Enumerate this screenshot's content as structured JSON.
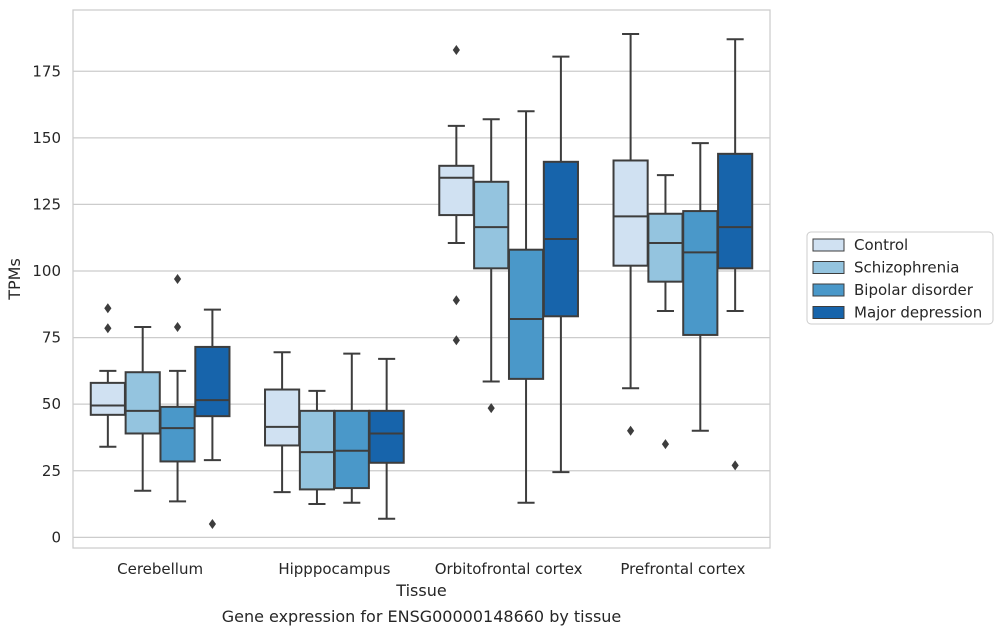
{
  "chart_data": {
    "type": "box",
    "xlabel": "Tissue",
    "ylabel": "TPMs",
    "caption": "Gene expression for ENSG00000148660 by tissue",
    "ylim": [
      -4,
      198
    ],
    "yticks": [
      0,
      25,
      50,
      75,
      100,
      125,
      150,
      175
    ],
    "grid": "horizontal",
    "legend_position": "right",
    "categories": [
      "Cerebellum",
      "Hipppocampus",
      "Orbitofrontal cortex",
      "Prefrontal cortex"
    ],
    "series": [
      {
        "name": "Control",
        "color": "#d0e1f2",
        "boxes": [
          {
            "whislo": 34,
            "q1": 46,
            "med": 49.5,
            "q3": 58,
            "whishi": 62.5,
            "fliers": [
              86,
              78.5
            ]
          },
          {
            "whislo": 17,
            "q1": 34.5,
            "med": 41.5,
            "q3": 55.5,
            "whishi": 69.5,
            "fliers": []
          },
          {
            "whislo": 110.5,
            "q1": 121,
            "med": 135,
            "q3": 139.5,
            "whishi": 154.5,
            "fliers": [
              183,
              89,
              74
            ]
          },
          {
            "whislo": 56,
            "q1": 102,
            "med": 120.5,
            "q3": 141.5,
            "whishi": 189,
            "fliers": [
              40
            ]
          }
        ]
      },
      {
        "name": "Schizophrenia",
        "color": "#94c4df",
        "boxes": [
          {
            "whislo": 17.5,
            "q1": 39,
            "med": 47.5,
            "q3": 62,
            "whishi": 79,
            "fliers": []
          },
          {
            "whislo": 12.5,
            "q1": 18,
            "med": 32,
            "q3": 47.5,
            "whishi": 55,
            "fliers": []
          },
          {
            "whislo": 58.5,
            "q1": 101,
            "med": 116.5,
            "q3": 133.5,
            "whishi": 157,
            "fliers": [
              48.5
            ]
          },
          {
            "whislo": 85,
            "q1": 96,
            "med": 110.5,
            "q3": 121.5,
            "whishi": 136,
            "fliers": [
              35
            ]
          }
        ]
      },
      {
        "name": "Bipolar disorder",
        "color": "#4a98c9",
        "boxes": [
          {
            "whislo": 13.5,
            "q1": 28.5,
            "med": 41,
            "q3": 49,
            "whishi": 62.5,
            "fliers": [
              97,
              79
            ]
          },
          {
            "whislo": 13,
            "q1": 18.5,
            "med": 32.5,
            "q3": 47.5,
            "whishi": 69,
            "fliers": []
          },
          {
            "whislo": 13,
            "q1": 59.5,
            "med": 82,
            "q3": 108,
            "whishi": 160,
            "fliers": []
          },
          {
            "whislo": 40,
            "q1": 76,
            "med": 107,
            "q3": 122.5,
            "whishi": 148,
            "fliers": []
          }
        ]
      },
      {
        "name": "Major depression",
        "color": "#1764ab",
        "boxes": [
          {
            "whislo": 29,
            "q1": 45.5,
            "med": 51.5,
            "q3": 71.5,
            "whishi": 85.5,
            "fliers": [
              5
            ]
          },
          {
            "whislo": 7,
            "q1": 28,
            "med": 39,
            "q3": 47.5,
            "whishi": 67,
            "fliers": []
          },
          {
            "whislo": 24.5,
            "q1": 83,
            "med": 112,
            "q3": 141,
            "whishi": 180.5,
            "fliers": []
          },
          {
            "whislo": 85,
            "q1": 101,
            "med": 116.5,
            "q3": 144,
            "whishi": 187,
            "fliers": [
              27
            ]
          }
        ]
      }
    ]
  }
}
